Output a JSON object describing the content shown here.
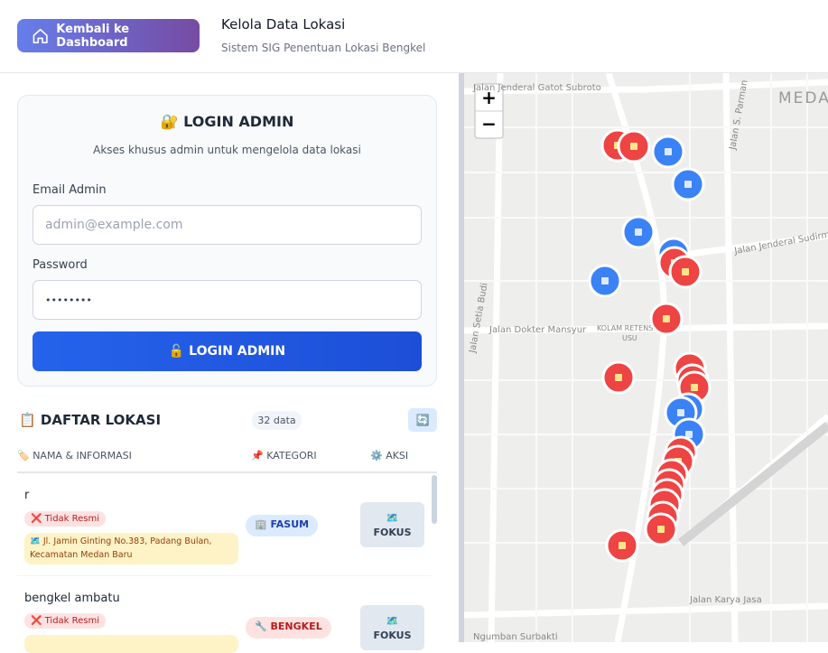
{
  "header": {
    "back_button": "Kembali ke Dashboard",
    "title": "Kelola Data Lokasi",
    "subtitle": "Sistem SIG Penentuan Lokasi Bengkel"
  },
  "login": {
    "title": "🔐 LOGIN ADMIN",
    "subtitle": "Akses khusus admin untuk mengelola data lokasi",
    "email_label": "Email Admin",
    "email_placeholder": "admin@example.com",
    "password_label": "Password",
    "password_value": "••••••••",
    "button": "🔓 LOGIN ADMIN"
  },
  "list": {
    "title": "📋 DAFTAR LOKASI",
    "count": "32 data",
    "refresh": "🔄"
  },
  "table": {
    "columns": [
      "🏷️ NAMA & INFORMASI",
      "📌 KATEGORI",
      "⚙️ AKSI"
    ],
    "rows": [
      {
        "name": "r",
        "status": "❌ Tidak Resmi",
        "address": "🗺️ Jl. Jamin Ginting No.383, Padang Bulan, Kecamatan Medan Baru",
        "category": "🏢 FASUM",
        "action_icon": "🗺️",
        "action": "FOKUS"
      },
      {
        "name": "bengkel ambatu",
        "status": "❌ Tidak Resmi",
        "category": "🔧 BENGKEL",
        "action_icon": "🗺️",
        "action": "FOKUS"
      }
    ]
  },
  "map": {
    "zoom_in": "+",
    "zoom_out": "−",
    "labels": [
      "Jalan Jenderal Gatot Subroto",
      "Jalan S. Parman",
      "MEDA",
      "Jalan Jenderal Sudirman",
      "Jalan Dokter Mansyur",
      "KOLAM RETENSI",
      "USU",
      "Jalan Setia Budi",
      "Jalan Karya Jasa",
      "Ngumban Surbakti"
    ]
  }
}
